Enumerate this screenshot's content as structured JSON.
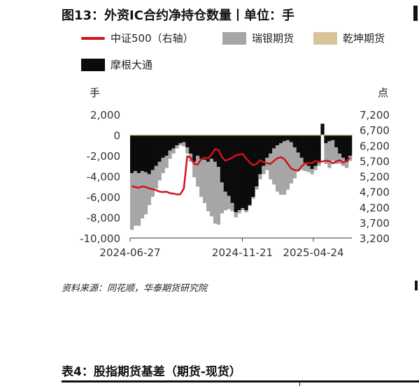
{
  "figure": {
    "title": "图13：外资IC合约净持仓数量丨单位：手",
    "source": "资料来源：同花顺，华泰期货研究院"
  },
  "table_caption": "表4：股指期货基差（期货-现货）",
  "colors": {
    "csi500": "#d0121b",
    "ruiyin": "#a6a6a6",
    "qiankun": "#d9c39c",
    "morgan": "#0b0b0b"
  },
  "chart_data": {
    "type": "bar+line",
    "left_axis": {
      "unit": "手",
      "ylim": [
        -10000,
        2000
      ],
      "ticks": [
        "2,000",
        "0",
        "-2,000",
        "-4,000",
        "-6,000",
        "-8,000",
        "-10,000"
      ]
    },
    "right_axis": {
      "unit": "点",
      "ylim": [
        3200,
        7200
      ],
      "ticks": [
        "7,200",
        "6,700",
        "6,200",
        "5,700",
        "5,200",
        "4,700",
        "4,200",
        "3,700",
        "3,200"
      ]
    },
    "x_ticks": [
      "2024-06-27",
      "2024-11-21",
      "2025-04-24"
    ],
    "legend": [
      "中证500（右轴）",
      "瑞银期货",
      "乾坤期货",
      "摩根大通"
    ],
    "grid": false,
    "periods": 64,
    "series": [
      {
        "name": "摩根大通",
        "type": "stacked_bar",
        "axis": "left",
        "values": [
          -3700,
          -3500,
          -3700,
          -3500,
          -3600,
          -3800,
          -3400,
          -3000,
          -2600,
          -2200,
          -2000,
          -1500,
          -1300,
          -1000,
          -800,
          -700,
          -1200,
          -1800,
          -2600,
          -2000,
          -2300,
          -2400,
          -2600,
          -2300,
          -2600,
          -3100,
          -4600,
          -5500,
          -5900,
          -6600,
          -7500,
          -7300,
          -7100,
          -7300,
          -6800,
          -6000,
          -5000,
          -3800,
          -3000,
          -2200,
          -1800,
          -1300,
          -1000,
          -800,
          -600,
          -500,
          -700,
          -1200,
          -1700,
          -2200,
          -2700,
          -3000,
          -3300,
          -3000,
          -2700,
          1100,
          -800,
          -600,
          -500,
          -1200,
          -1800,
          -2200,
          -2600,
          -2000
        ]
      },
      {
        "name": "瑞银期货",
        "type": "stacked_bar",
        "axis": "left",
        "values": [
          -5500,
          -5300,
          -5100,
          -4600,
          -4100,
          -3000,
          -2600,
          -2200,
          -1800,
          -1500,
          -1200,
          -800,
          -500,
          -300,
          -200,
          -400,
          -600,
          -800,
          -1500,
          -3000,
          -3700,
          -4200,
          -4800,
          -5600,
          -6000,
          -5600,
          -3000,
          -1800,
          -1300,
          -800,
          -500,
          -300,
          -200,
          -200,
          -100,
          -200,
          -300,
          -500,
          -800,
          -1200,
          -2500,
          -3500,
          -4500,
          -5000,
          -5200,
          -4800,
          -4000,
          -3000,
          -1800,
          -1200,
          -800,
          -600,
          -500,
          -400,
          -300,
          0,
          -2000,
          -2600,
          -2000,
          -1600,
          -1000,
          -800,
          -600,
          -500
        ]
      },
      {
        "name": "乾坤期货",
        "type": "stacked_bar",
        "axis": "left",
        "values": [
          0,
          0,
          0,
          0,
          0,
          0,
          0,
          0,
          0,
          0,
          0,
          0,
          0,
          0,
          0,
          0,
          0,
          0,
          0,
          0,
          0,
          0,
          0,
          0,
          0,
          0,
          0,
          0,
          0,
          0,
          0,
          0,
          0,
          0,
          0,
          0,
          0,
          0,
          0,
          0,
          0,
          0,
          0,
          0,
          0,
          0,
          0,
          0,
          0,
          0,
          0,
          0,
          0,
          0,
          0,
          0,
          0,
          0,
          0,
          0,
          0,
          0,
          0,
          0
        ]
      },
      {
        "name": "中证500",
        "type": "line",
        "axis": "right",
        "values": [
          4880,
          4850,
          4830,
          4870,
          4850,
          4810,
          4780,
          4750,
          4700,
          4690,
          4700,
          4650,
          4640,
          4610,
          4620,
          4800,
          5850,
          5800,
          5600,
          5580,
          5750,
          5800,
          5780,
          5900,
          6080,
          6050,
          5820,
          5700,
          5750,
          5800,
          5880,
          5900,
          5920,
          5780,
          5650,
          5560,
          5600,
          5720,
          5650,
          5620,
          5600,
          5700,
          5780,
          5820,
          5760,
          5600,
          5450,
          5400,
          5380,
          5520,
          5620,
          5630,
          5620,
          5700,
          5660,
          5680,
          5700,
          5690,
          5620,
          5680,
          5720,
          5640,
          5700,
          5800
        ]
      }
    ]
  }
}
